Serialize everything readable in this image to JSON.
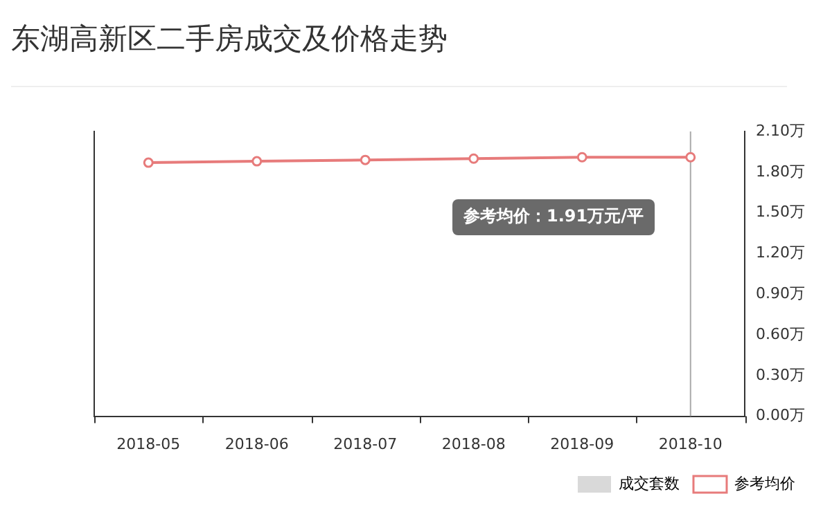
{
  "chart_data": {
    "type": "line",
    "title": "东湖高新区二手房成交及价格走势",
    "categories": [
      "2018-05",
      "2018-06",
      "2018-07",
      "2018-08",
      "2018-09",
      "2018-10"
    ],
    "series": [
      {
        "name": "成交套数",
        "type": "bar",
        "color": "#d9d9d9",
        "values": [
          null,
          null,
          null,
          null,
          null,
          null
        ]
      },
      {
        "name": "参考均价",
        "color": "#e77b7b",
        "axis": "y2",
        "values": [
          1.87,
          1.88,
          1.89,
          1.9,
          1.91,
          1.91
        ]
      }
    ],
    "y2lim": [
      0,
      2.1
    ],
    "y2ticks": [
      {
        "value": 0,
        "label": "0.00万"
      },
      {
        "value": 0.3,
        "label": "0.30万"
      },
      {
        "value": 0.6,
        "label": "0.60万"
      },
      {
        "value": 0.9,
        "label": "0.90万"
      },
      {
        "value": 1.2,
        "label": "1.20万"
      },
      {
        "value": 1.5,
        "label": "1.50万"
      },
      {
        "value": 1.8,
        "label": "1.80万"
      },
      {
        "value": 2.1,
        "label": "2.10万"
      }
    ],
    "ref_lines": [
      {
        "axis": "x",
        "value": "2018-10",
        "color": "#aaaaaa"
      }
    ],
    "annotations": [
      "参考均价：1.91万元/平"
    ],
    "marker": "circle",
    "grid": false,
    "legend": "bottom right"
  }
}
